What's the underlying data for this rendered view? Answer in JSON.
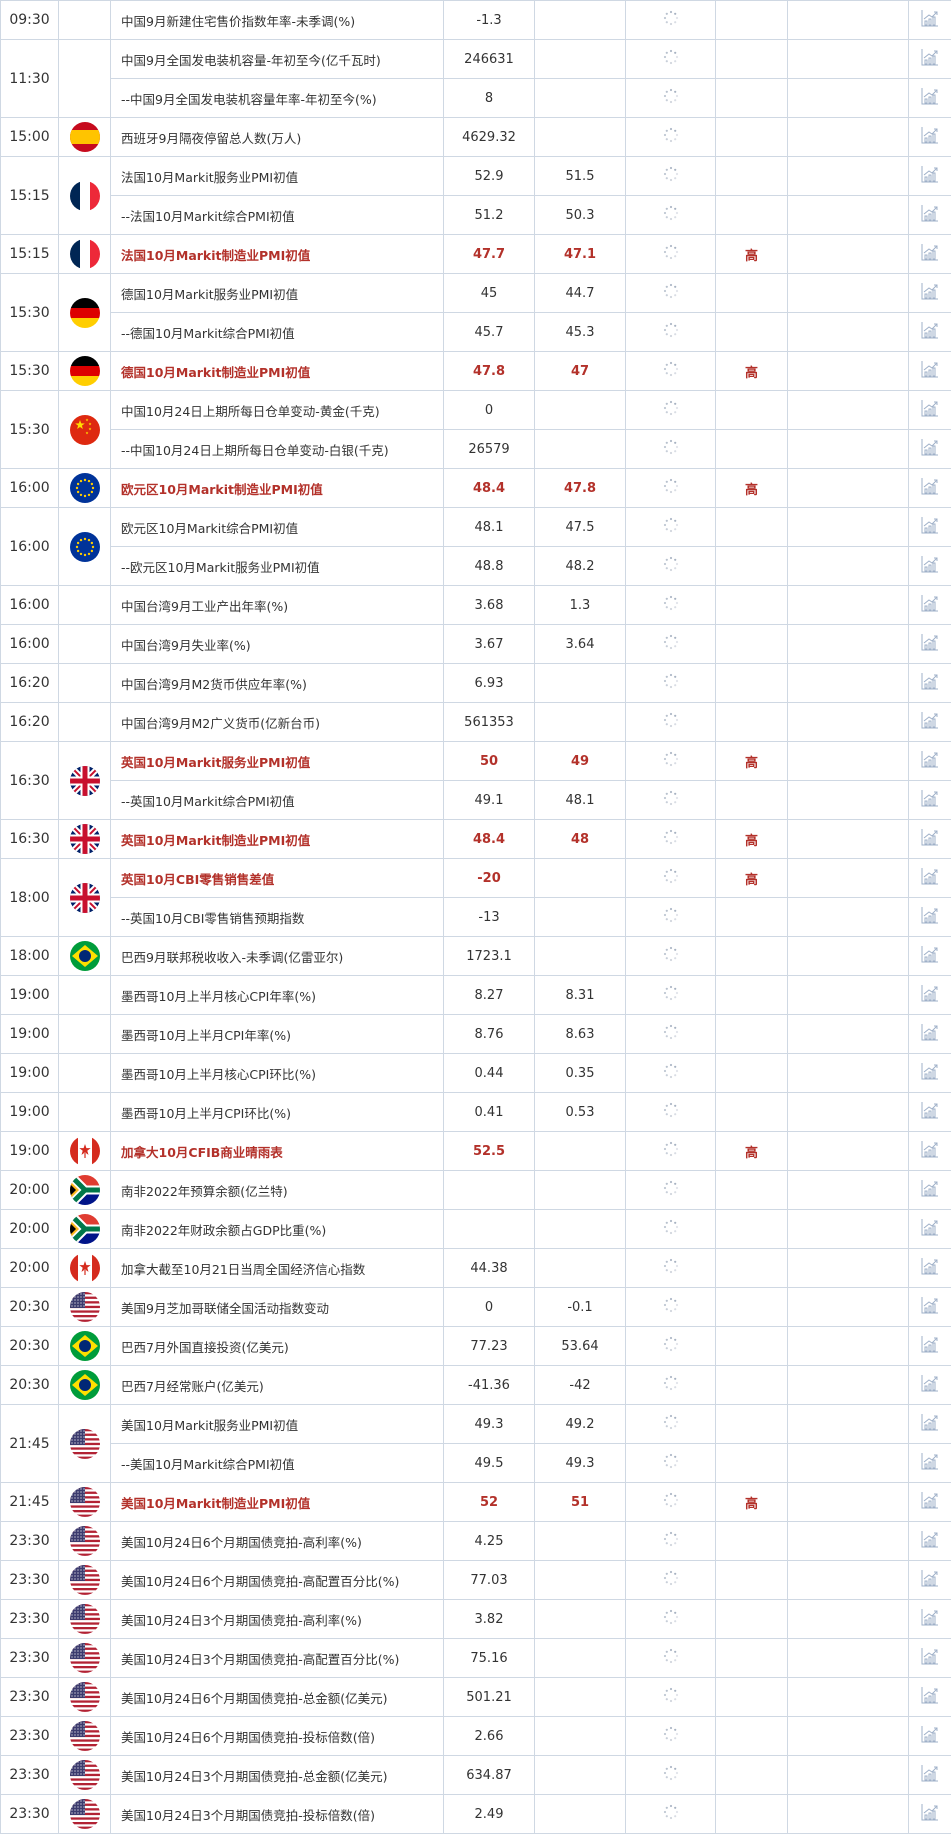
{
  "colors": {
    "highlight": "#b3312a",
    "grid": "#cfd8e3",
    "text": "#333333"
  },
  "icons": {
    "previous": "loading-spinner-icon",
    "chart": "bar-chart-icon"
  },
  "groups": [
    {
      "time": "09:30",
      "flag": "",
      "items": [
        {
          "event": "中国9月新建住宅售价指数年率-未季调(%)",
          "actual": "-1.3",
          "forecast": "",
          "importance": ""
        }
      ]
    },
    {
      "time": "11:30",
      "flag": "",
      "items": [
        {
          "event": "中国9月全国发电装机容量-年初至今(亿千瓦时)",
          "actual": "246631",
          "forecast": "",
          "importance": ""
        },
        {
          "event": "--中国9月全国发电装机容量年率-年初至今(%)",
          "actual": "8",
          "forecast": "",
          "importance": ""
        }
      ]
    },
    {
      "time": "15:00",
      "flag": "spain",
      "items": [
        {
          "event": "西班牙9月隔夜停留总人数(万人)",
          "actual": "4629.32",
          "forecast": "",
          "importance": ""
        }
      ]
    },
    {
      "time": "15:15",
      "flag": "france",
      "items": [
        {
          "event": "法国10月Markit服务业PMI初值",
          "actual": "52.9",
          "forecast": "51.5",
          "importance": ""
        },
        {
          "event": "--法国10月Markit综合PMI初值",
          "actual": "51.2",
          "forecast": "50.3",
          "importance": ""
        }
      ]
    },
    {
      "time": "15:15",
      "flag": "france",
      "items": [
        {
          "event": "法国10月Markit制造业PMI初值",
          "actual": "47.7",
          "forecast": "47.1",
          "importance": "高"
        }
      ]
    },
    {
      "time": "15:30",
      "flag": "germany",
      "items": [
        {
          "event": "德国10月Markit服务业PMI初值",
          "actual": "45",
          "forecast": "44.7",
          "importance": ""
        },
        {
          "event": "--德国10月Markit综合PMI初值",
          "actual": "45.7",
          "forecast": "45.3",
          "importance": ""
        }
      ]
    },
    {
      "time": "15:30",
      "flag": "germany",
      "items": [
        {
          "event": "德国10月Markit制造业PMI初值",
          "actual": "47.8",
          "forecast": "47",
          "importance": "高"
        }
      ]
    },
    {
      "time": "15:30",
      "flag": "china",
      "items": [
        {
          "event": "中国10月24日上期所每日仓单变动-黄金(千克)",
          "actual": "0",
          "forecast": "",
          "importance": ""
        },
        {
          "event": "--中国10月24日上期所每日仓单变动-白银(千克)",
          "actual": "26579",
          "forecast": "",
          "importance": ""
        }
      ]
    },
    {
      "time": "16:00",
      "flag": "eu",
      "items": [
        {
          "event": "欧元区10月Markit制造业PMI初值",
          "actual": "48.4",
          "forecast": "47.8",
          "importance": "高"
        }
      ]
    },
    {
      "time": "16:00",
      "flag": "eu",
      "items": [
        {
          "event": "欧元区10月Markit综合PMI初值",
          "actual": "48.1",
          "forecast": "47.5",
          "importance": ""
        },
        {
          "event": "--欧元区10月Markit服务业PMI初值",
          "actual": "48.8",
          "forecast": "48.2",
          "importance": ""
        }
      ]
    },
    {
      "time": "16:00",
      "flag": "",
      "items": [
        {
          "event": "中国台湾9月工业产出年率(%)",
          "actual": "3.68",
          "forecast": "1.3",
          "importance": ""
        }
      ]
    },
    {
      "time": "16:00",
      "flag": "",
      "items": [
        {
          "event": "中国台湾9月失业率(%)",
          "actual": "3.67",
          "forecast": "3.64",
          "importance": ""
        }
      ]
    },
    {
      "time": "16:20",
      "flag": "",
      "items": [
        {
          "event": "中国台湾9月M2货币供应年率(%)",
          "actual": "6.93",
          "forecast": "",
          "importance": ""
        }
      ]
    },
    {
      "time": "16:20",
      "flag": "",
      "items": [
        {
          "event": "中国台湾9月M2广义货币(亿新台币)",
          "actual": "561353",
          "forecast": "",
          "importance": ""
        }
      ]
    },
    {
      "time": "16:30",
      "flag": "uk",
      "items": [
        {
          "event": "英国10月Markit服务业PMI初值",
          "actual": "50",
          "forecast": "49",
          "importance": "高"
        },
        {
          "event": "--英国10月Markit综合PMI初值",
          "actual": "49.1",
          "forecast": "48.1",
          "importance": ""
        }
      ]
    },
    {
      "time": "16:30",
      "flag": "uk",
      "items": [
        {
          "event": "英国10月Markit制造业PMI初值",
          "actual": "48.4",
          "forecast": "48",
          "importance": "高"
        }
      ]
    },
    {
      "time": "18:00",
      "flag": "uk",
      "items": [
        {
          "event": "英国10月CBI零售销售差值",
          "actual": "-20",
          "forecast": "",
          "importance": "高"
        },
        {
          "event": "--英国10月CBI零售销售预期指数",
          "actual": "-13",
          "forecast": "",
          "importance": ""
        }
      ]
    },
    {
      "time": "18:00",
      "flag": "brazil",
      "items": [
        {
          "event": "巴西9月联邦税收收入-未季调(亿雷亚尔)",
          "actual": "1723.1",
          "forecast": "",
          "importance": ""
        }
      ]
    },
    {
      "time": "19:00",
      "flag": "",
      "items": [
        {
          "event": "墨西哥10月上半月核心CPI年率(%)",
          "actual": "8.27",
          "forecast": "8.31",
          "importance": ""
        }
      ]
    },
    {
      "time": "19:00",
      "flag": "",
      "items": [
        {
          "event": "墨西哥10月上半月CPI年率(%)",
          "actual": "8.76",
          "forecast": "8.63",
          "importance": ""
        }
      ]
    },
    {
      "time": "19:00",
      "flag": "",
      "items": [
        {
          "event": "墨西哥10月上半月核心CPI环比(%)",
          "actual": "0.44",
          "forecast": "0.35",
          "importance": ""
        }
      ]
    },
    {
      "time": "19:00",
      "flag": "",
      "items": [
        {
          "event": "墨西哥10月上半月CPI环比(%)",
          "actual": "0.41",
          "forecast": "0.53",
          "importance": ""
        }
      ]
    },
    {
      "time": "19:00",
      "flag": "canada",
      "items": [
        {
          "event": "加拿大10月CFIB商业晴雨表",
          "actual": "52.5",
          "forecast": "",
          "importance": "高"
        }
      ]
    },
    {
      "time": "20:00",
      "flag": "southafrica",
      "items": [
        {
          "event": "南非2022年预算余额(亿兰特)",
          "actual": "",
          "forecast": "",
          "importance": ""
        }
      ]
    },
    {
      "time": "20:00",
      "flag": "southafrica",
      "items": [
        {
          "event": "南非2022年财政余额占GDP比重(%)",
          "actual": "",
          "forecast": "",
          "importance": ""
        }
      ]
    },
    {
      "time": "20:00",
      "flag": "canada",
      "items": [
        {
          "event": "加拿大截至10月21日当周全国经济信心指数",
          "actual": "44.38",
          "forecast": "",
          "importance": ""
        }
      ]
    },
    {
      "time": "20:30",
      "flag": "us",
      "items": [
        {
          "event": "美国9月芝加哥联储全国活动指数变动",
          "actual": "0",
          "forecast": "-0.1",
          "importance": ""
        }
      ]
    },
    {
      "time": "20:30",
      "flag": "brazil",
      "items": [
        {
          "event": "巴西7月外国直接投资(亿美元)",
          "actual": "77.23",
          "forecast": "53.64",
          "importance": ""
        }
      ]
    },
    {
      "time": "20:30",
      "flag": "brazil",
      "items": [
        {
          "event": "巴西7月经常账户(亿美元)",
          "actual": "-41.36",
          "forecast": "-42",
          "importance": ""
        }
      ]
    },
    {
      "time": "21:45",
      "flag": "us",
      "items": [
        {
          "event": "美国10月Markit服务业PMI初值",
          "actual": "49.3",
          "forecast": "49.2",
          "importance": ""
        },
        {
          "event": "--美国10月Markit综合PMI初值",
          "actual": "49.5",
          "forecast": "49.3",
          "importance": ""
        }
      ]
    },
    {
      "time": "21:45",
      "flag": "us",
      "items": [
        {
          "event": "美国10月Markit制造业PMI初值",
          "actual": "52",
          "forecast": "51",
          "importance": "高"
        }
      ]
    },
    {
      "time": "23:30",
      "flag": "us",
      "items": [
        {
          "event": "美国10月24日6个月期国债竞拍-高利率(%)",
          "actual": "4.25",
          "forecast": "",
          "importance": ""
        }
      ]
    },
    {
      "time": "23:30",
      "flag": "us",
      "items": [
        {
          "event": "美国10月24日6个月期国债竞拍-高配置百分比(%)",
          "actual": "77.03",
          "forecast": "",
          "importance": ""
        }
      ]
    },
    {
      "time": "23:30",
      "flag": "us",
      "items": [
        {
          "event": "美国10月24日3个月期国债竞拍-高利率(%)",
          "actual": "3.82",
          "forecast": "",
          "importance": ""
        }
      ]
    },
    {
      "time": "23:30",
      "flag": "us",
      "items": [
        {
          "event": "美国10月24日3个月期国债竞拍-高配置百分比(%)",
          "actual": "75.16",
          "forecast": "",
          "importance": ""
        }
      ]
    },
    {
      "time": "23:30",
      "flag": "us",
      "items": [
        {
          "event": "美国10月24日6个月期国债竞拍-总金额(亿美元)",
          "actual": "501.21",
          "forecast": "",
          "importance": ""
        }
      ]
    },
    {
      "time": "23:30",
      "flag": "us",
      "items": [
        {
          "event": "美国10月24日6个月期国债竞拍-投标倍数(倍)",
          "actual": "2.66",
          "forecast": "",
          "importance": ""
        }
      ]
    },
    {
      "time": "23:30",
      "flag": "us",
      "items": [
        {
          "event": "美国10月24日3个月期国债竞拍-总金额(亿美元)",
          "actual": "634.87",
          "forecast": "",
          "importance": ""
        }
      ]
    },
    {
      "time": "23:30",
      "flag": "us",
      "items": [
        {
          "event": "美国10月24日3个月期国债竞拍-投标倍数(倍)",
          "actual": "2.49",
          "forecast": "",
          "importance": ""
        }
      ]
    }
  ]
}
